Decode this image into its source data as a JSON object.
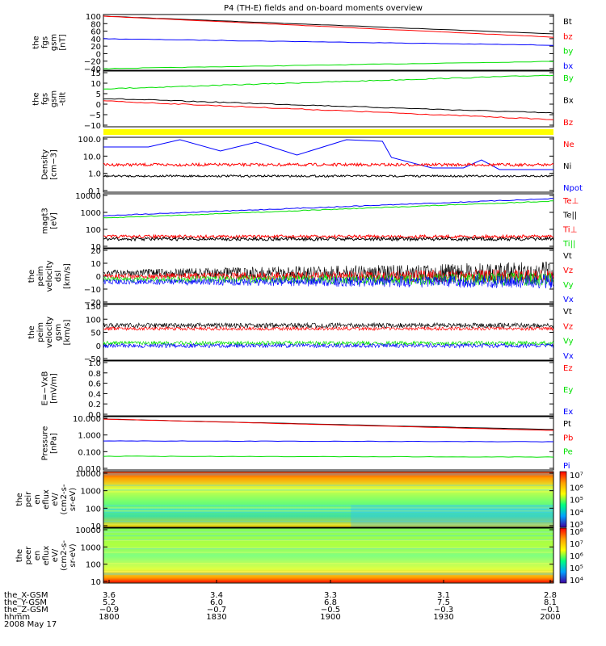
{
  "title": "P4 (TH-E) fields and on-board moments overview",
  "date": "2008 May 17",
  "colors": {
    "black": "#000000",
    "red": "#ff0000",
    "green": "#00e000",
    "blue": "#0000ff",
    "yellow": "#ffff00"
  },
  "panels": [
    {
      "id": "p1",
      "ylabel": [
        "the",
        "fgs",
        "gsm",
        "[nT]"
      ],
      "ticks": [
        "100",
        "80",
        "60",
        "40",
        "20",
        "0",
        "−20",
        "−40"
      ],
      "legend": [
        {
          "name": "Bt",
          "color": "black"
        },
        {
          "name": "bz",
          "color": "red"
        },
        {
          "name": "by",
          "color": "green"
        },
        {
          "name": "bx",
          "color": "blue"
        }
      ]
    },
    {
      "id": "p2",
      "ylabel": [
        "the",
        "fgs",
        "gsm",
        "-tilt"
      ],
      "ticks": [
        "15",
        "10",
        "5",
        "0",
        "−5",
        "−10"
      ],
      "legend": [
        {
          "name": "By",
          "color": "green"
        },
        {
          "name": "Bx",
          "color": "black"
        },
        {
          "name": "Bz",
          "color": "red"
        }
      ]
    },
    {
      "id": "p3",
      "ylabel": [
        "Density",
        "[cm−3]"
      ],
      "ticks": [
        "100.0",
        "10.0",
        "1.0",
        "0.1"
      ],
      "legend": [
        {
          "name": "Ne",
          "color": "red"
        },
        {
          "name": "Ni",
          "color": "black"
        },
        {
          "name": "Npot",
          "color": "blue"
        }
      ]
    },
    {
      "id": "p4",
      "ylabel": [
        "magt3",
        "[eV]"
      ],
      "ticks": [
        "10000",
        "1000",
        "100",
        "10"
      ],
      "legend": [
        {
          "name": "Te⊥",
          "color": "red"
        },
        {
          "name": "Te||",
          "color": "black"
        },
        {
          "name": "Ti⊥",
          "color": "red"
        },
        {
          "name": "Ti||",
          "color": "green"
        }
      ]
    },
    {
      "id": "p5",
      "ylabel": [
        "the",
        "peim",
        "velocity",
        "dsl",
        "[km/s]"
      ],
      "ticks": [
        "20",
        "10",
        "0",
        "−10",
        "−20"
      ],
      "legend": [
        {
          "name": "Vt",
          "color": "black"
        },
        {
          "name": "Vz",
          "color": "red"
        },
        {
          "name": "Vy",
          "color": "green"
        },
        {
          "name": "Vx",
          "color": "blue"
        }
      ]
    },
    {
      "id": "p6",
      "ylabel": [
        "the",
        "peim",
        "velocity",
        "gsm",
        "[km/s]"
      ],
      "ticks": [
        "150",
        "100",
        "50",
        "0",
        "−50"
      ],
      "legend": [
        {
          "name": "Vt",
          "color": "black"
        },
        {
          "name": "Vz",
          "color": "red"
        },
        {
          "name": "Vy",
          "color": "green"
        },
        {
          "name": "Vx",
          "color": "blue"
        }
      ]
    },
    {
      "id": "p7",
      "ylabel": [
        "E=−VxB",
        "[mV/m]"
      ],
      "ticks": [
        "1.0",
        "0.8",
        "0.6",
        "0.4",
        "0.2",
        "0.0"
      ],
      "legend": [
        {
          "name": "Ez",
          "color": "red"
        },
        {
          "name": "Ey",
          "color": "green"
        },
        {
          "name": "Ex",
          "color": "blue"
        }
      ]
    },
    {
      "id": "p8",
      "ylabel": [
        "Pressure",
        "[nPa]"
      ],
      "ticks": [
        "10.000",
        "1.000",
        "0.100",
        "0.010"
      ],
      "legend": [
        {
          "name": "Pt",
          "color": "black"
        },
        {
          "name": "Pb",
          "color": "red"
        },
        {
          "name": "Pe",
          "color": "green"
        },
        {
          "name": "Pi",
          "color": "blue"
        }
      ]
    },
    {
      "id": "p9",
      "ylabel": [
        "the",
        "peir",
        "en",
        "eflux",
        "eV/",
        "(cm2-s-",
        "sr-eV)"
      ],
      "ticks": [
        "10000",
        "1000",
        "100",
        "10"
      ],
      "cbar": [
        "10⁷",
        "10⁶",
        "10⁵",
        "10⁴",
        "10³"
      ]
    },
    {
      "id": "p10",
      "ylabel": [
        "the",
        "peer",
        "en",
        "eflux",
        "eV/",
        "(cm2-s-",
        "sr-eV)"
      ],
      "ticks": [
        "10000",
        "1000",
        "100",
        "10"
      ],
      "cbar": [
        "10⁸",
        "10⁷",
        "10⁶",
        "10⁵",
        "10⁴"
      ]
    }
  ],
  "xaxis": {
    "rows": [
      {
        "label": "the_X-GSM",
        "values": [
          "3.6",
          "3.4",
          "3.3",
          "3.1",
          "2.8"
        ]
      },
      {
        "label": "the_Y-GSM",
        "values": [
          "5.2",
          "6.0",
          "6.8",
          "7.5",
          "8.1"
        ]
      },
      {
        "label": "the_Z-GSM",
        "values": [
          "−0.9",
          "−0.7",
          "−0.5",
          "−0.3",
          "−0.1"
        ]
      },
      {
        "label": "hhmm",
        "values": [
          "1800",
          "1830",
          "1900",
          "1930",
          "2000"
        ]
      }
    ]
  },
  "chart_data": {
    "type": "line",
    "x": [
      "1800",
      "1830",
      "1900",
      "1930",
      "2000"
    ],
    "series": [
      {
        "name": "Bt",
        "values": [
          100,
          88,
          76,
          64,
          52
        ]
      },
      {
        "name": "bz",
        "values": [
          100,
          85,
          72,
          58,
          45
        ]
      },
      {
        "name": "by",
        "values": [
          35,
          30,
          25,
          22,
          20
        ]
      },
      {
        "name": "bx",
        "values": [
          -35,
          -30,
          -25,
          -22,
          -20
        ]
      }
    ]
  }
}
